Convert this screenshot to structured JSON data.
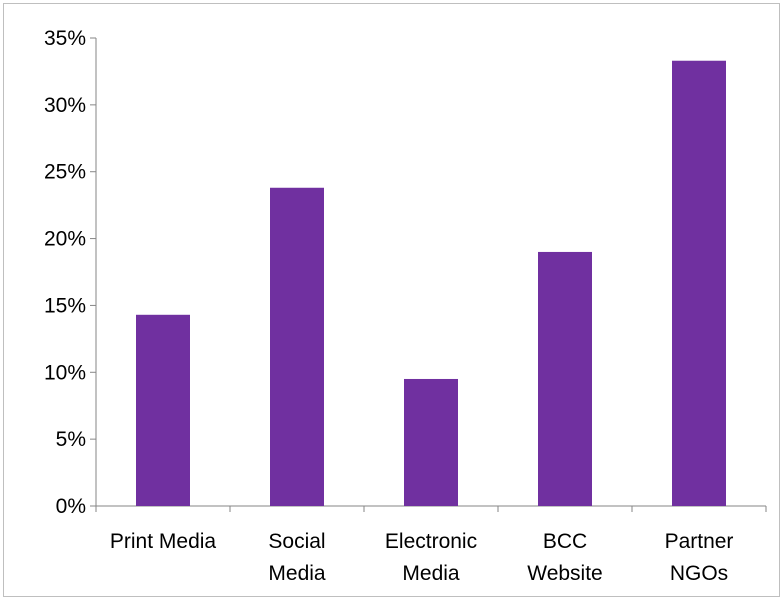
{
  "chart_data": {
    "type": "bar",
    "title": "",
    "xlabel": "",
    "ylabel": "",
    "categories": [
      [
        "Print Media"
      ],
      [
        "Social",
        "Media"
      ],
      [
        "Electronic",
        "Media"
      ],
      [
        "BCC",
        "Website"
      ],
      [
        "Partner",
        "NGOs"
      ]
    ],
    "values": [
      14.3,
      23.8,
      9.5,
      19.0,
      33.3
    ],
    "ylim": [
      0,
      35
    ],
    "yticks": [
      0,
      5,
      10,
      15,
      20,
      25,
      30,
      35
    ],
    "ytick_labels": [
      "0%",
      "5%",
      "10%",
      "15%",
      "20%",
      "25%",
      "30%",
      "35%"
    ],
    "y_unit": "%",
    "grid": false,
    "legend": "none",
    "bar_color": "#7030a0",
    "axis_color": "#868686"
  }
}
